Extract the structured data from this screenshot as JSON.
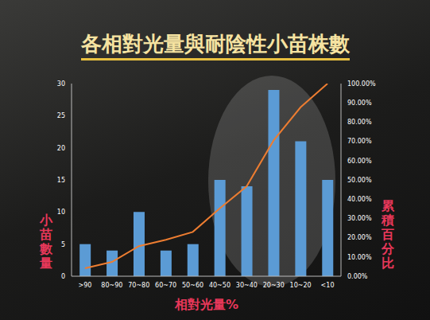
{
  "chart_data": {
    "type": "bar",
    "title": "各相對光量與耐陰性小苗株數",
    "x_label": "相對光量%",
    "y_label": "小苗數量",
    "y2_label": "累積百分比",
    "categories": [
      ">90",
      "80~90",
      "70~80",
      "60~70",
      "50~60",
      "40~50",
      "30~40",
      "20~30",
      "10~20",
      "<10"
    ],
    "series": [
      {
        "type": "bar",
        "color": "#5b9bd5",
        "axis": "y",
        "values": [
          5,
          4,
          10,
          4,
          5,
          15,
          14,
          29,
          21,
          15
        ]
      },
      {
        "type": "line",
        "color": "#ed7d31",
        "axis": "y2",
        "values": [
          4.1,
          7.4,
          15.6,
          18.9,
          23.0,
          35.2,
          46.7,
          70.5,
          87.7,
          100
        ]
      }
    ],
    "ylim": [
      0,
      30
    ],
    "yticks": [
      0,
      5,
      10,
      15,
      20,
      25,
      30
    ],
    "y2lim": [
      0,
      100
    ],
    "y2ticks": [
      {
        "value": 0,
        "label": "0.00%"
      },
      {
        "value": 10,
        "label": "10.00%"
      },
      {
        "value": 20,
        "label": "20.00%"
      },
      {
        "value": 30,
        "label": "30.00%"
      },
      {
        "value": 40,
        "label": "40.00%"
      },
      {
        "value": 50,
        "label": "50.00%"
      },
      {
        "value": 60,
        "label": "60.00%"
      },
      {
        "value": 70,
        "label": "70.00%"
      },
      {
        "value": 80,
        "label": "80.00%"
      },
      {
        "value": 90,
        "label": "90.00%"
      },
      {
        "value": 100,
        "label": "100.00%"
      }
    ],
    "grid": false
  }
}
